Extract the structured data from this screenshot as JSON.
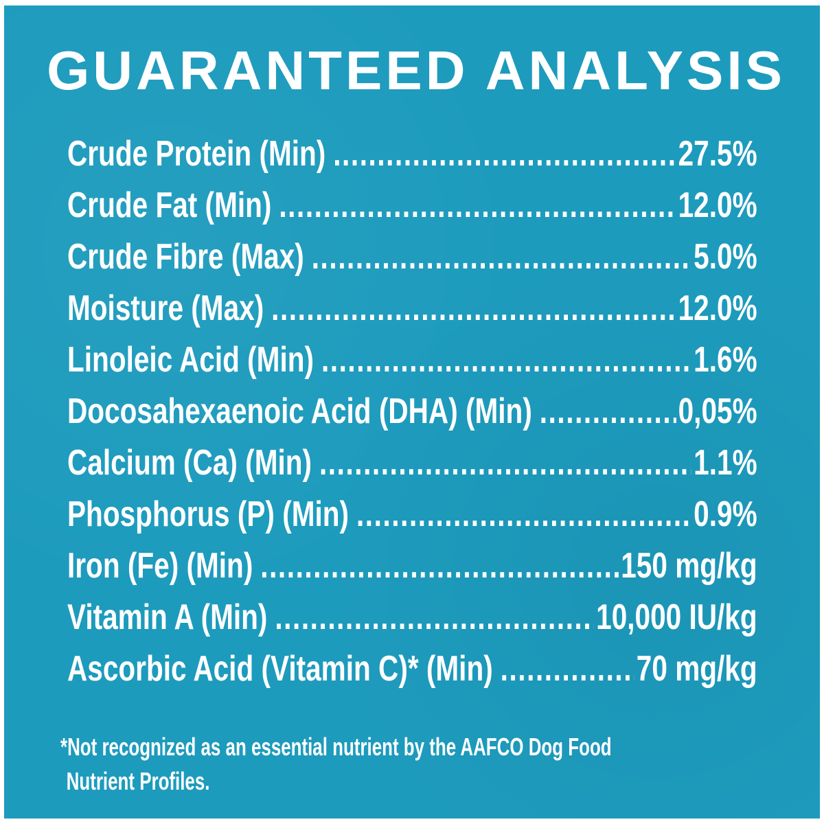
{
  "title": "GUARANTEED ANALYSIS",
  "colors": {
    "background": "#1d9bbd",
    "text": "#ffffff"
  },
  "rows": [
    {
      "label": "Crude Protein (Min)",
      "value": "27.5%"
    },
    {
      "label": "Crude Fat (Min)",
      "value": "12.0%"
    },
    {
      "label": "Crude Fibre (Max)",
      "value": "5.0%"
    },
    {
      "label": "Moisture (Max)",
      "value": "12.0%"
    },
    {
      "label": "Linoleic Acid (Min)",
      "value": "1.6%"
    },
    {
      "label": "Docosahexaenoic Acid (DHA) (Min)",
      "value": "0,05%"
    },
    {
      "label": "Calcium (Ca) (Min)",
      "value": "1.1%"
    },
    {
      "label": "Phosphorus (P) (Min)",
      "value": "0.9%"
    },
    {
      "label": "Iron (Fe) (Min)",
      "value": "150 mg/kg"
    },
    {
      "label": "Vitamin A (Min)",
      "value": "10,000 IU/kg"
    },
    {
      "label": "Ascorbic Acid (Vitamin C)* (Min)",
      "value": "70 mg/kg"
    }
  ],
  "footnote": {
    "line1": "*Not recognized as an essential nutrient by the AAFCO Dog Food",
    "line2": "Nutrient Profiles."
  }
}
